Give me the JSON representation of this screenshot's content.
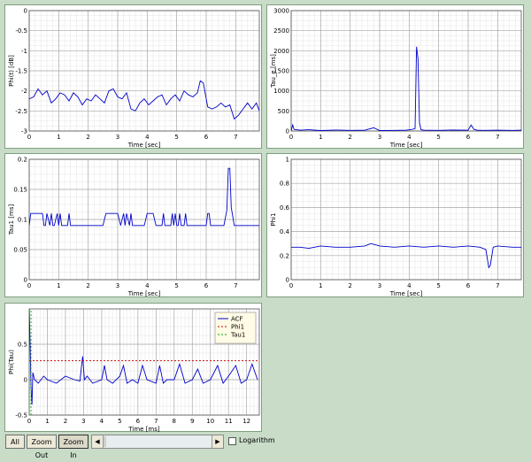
{
  "chart_data": [
    {
      "type": "line",
      "xlabel": "Time [sec]",
      "ylabel": "Phi(t) [dB]",
      "xlim": [
        0,
        7.8
      ],
      "ylim": [
        -3,
        0
      ],
      "xticks": [
        0,
        1,
        2,
        3,
        4,
        5,
        6,
        7
      ],
      "yticks": [
        0,
        -0.5,
        -1,
        -1.5,
        -2,
        -2.5,
        -3
      ],
      "grid": true,
      "series": [
        {
          "color": "#0000cc",
          "x": [
            0,
            0.15,
            0.3,
            0.45,
            0.6,
            0.75,
            0.9,
            1.05,
            1.2,
            1.35,
            1.5,
            1.65,
            1.8,
            1.95,
            2.1,
            2.25,
            2.4,
            2.55,
            2.7,
            2.85,
            3.0,
            3.15,
            3.3,
            3.45,
            3.6,
            3.75,
            3.9,
            4.05,
            4.2,
            4.35,
            4.5,
            4.65,
            4.8,
            4.95,
            5.1,
            5.25,
            5.4,
            5.55,
            5.7,
            5.8,
            5.9,
            6.05,
            6.2,
            6.35,
            6.5,
            6.65,
            6.8,
            6.95,
            7.1,
            7.25,
            7.4,
            7.55,
            7.7,
            7.8
          ],
          "y": [
            -2.2,
            -2.15,
            -1.95,
            -2.1,
            -2.0,
            -2.3,
            -2.2,
            -2.05,
            -2.1,
            -2.25,
            -2.05,
            -2.15,
            -2.35,
            -2.2,
            -2.25,
            -2.1,
            -2.2,
            -2.3,
            -2.0,
            -1.95,
            -2.15,
            -2.2,
            -2.05,
            -2.45,
            -2.5,
            -2.3,
            -2.2,
            -2.35,
            -2.25,
            -2.15,
            -2.1,
            -2.35,
            -2.2,
            -2.1,
            -2.25,
            -2.0,
            -2.1,
            -2.15,
            -2.05,
            -1.75,
            -1.8,
            -2.4,
            -2.45,
            -2.4,
            -2.3,
            -2.4,
            -2.35,
            -2.7,
            -2.6,
            -2.45,
            -2.3,
            -2.45,
            -2.3,
            -2.5
          ]
        }
      ]
    },
    {
      "type": "line",
      "xlabel": "Time [sec]",
      "ylabel": "Tau_e [ms]",
      "xlim": [
        0,
        7.8
      ],
      "ylim": [
        0,
        3000
      ],
      "xticks": [
        0,
        1,
        2,
        3,
        4,
        5,
        6,
        7
      ],
      "yticks": [
        0,
        500,
        1000,
        1500,
        2000,
        2500,
        3000
      ],
      "grid": true,
      "series": [
        {
          "color": "#0000cc",
          "x": [
            0,
            0.05,
            0.1,
            0.3,
            0.6,
            1.0,
            1.5,
            2.0,
            2.5,
            2.8,
            3.0,
            3.5,
            3.9,
            4.1,
            4.2,
            4.25,
            4.3,
            4.35,
            4.4,
            4.5,
            5.0,
            5.5,
            6.0,
            6.1,
            6.2,
            6.3,
            6.5,
            7.0,
            7.5,
            7.8
          ],
          "y": [
            0,
            150,
            40,
            20,
            30,
            10,
            25,
            15,
            20,
            80,
            10,
            15,
            20,
            40,
            60,
            2100,
            1800,
            200,
            30,
            20,
            15,
            25,
            20,
            150,
            40,
            20,
            15,
            20,
            15,
            20
          ]
        }
      ]
    },
    {
      "type": "line",
      "xlabel": "Time [sec]",
      "ylabel": "Tau1 [ms]",
      "xlim": [
        0,
        7.8
      ],
      "ylim": [
        0,
        0.2
      ],
      "xticks": [
        0,
        1,
        2,
        3,
        4,
        5,
        6,
        7
      ],
      "yticks": [
        0,
        0.05,
        0.1,
        0.15,
        0.2
      ],
      "grid": true,
      "series": [
        {
          "color": "#0000cc",
          "x": [
            0,
            0.05,
            0.1,
            0.45,
            0.5,
            0.55,
            0.6,
            0.7,
            0.75,
            0.8,
            0.85,
            0.95,
            1.0,
            1.05,
            1.1,
            1.3,
            1.35,
            1.4,
            1.45,
            2.5,
            2.6,
            3.0,
            3.1,
            3.2,
            3.25,
            3.3,
            3.4,
            3.45,
            3.5,
            3.9,
            4.0,
            4.2,
            4.3,
            4.5,
            4.55,
            4.6,
            4.65,
            4.8,
            4.85,
            4.9,
            4.95,
            5.0,
            5.05,
            5.1,
            5.15,
            5.25,
            5.3,
            5.35,
            5.4,
            6.0,
            6.05,
            6.1,
            6.15,
            6.6,
            6.7,
            6.75,
            6.8,
            6.85,
            6.95,
            7.8
          ],
          "y": [
            0.09,
            0.11,
            0.11,
            0.11,
            0.09,
            0.09,
            0.11,
            0.09,
            0.11,
            0.09,
            0.09,
            0.11,
            0.09,
            0.11,
            0.09,
            0.09,
            0.11,
            0.09,
            0.09,
            0.09,
            0.11,
            0.11,
            0.09,
            0.11,
            0.09,
            0.11,
            0.09,
            0.11,
            0.09,
            0.09,
            0.11,
            0.11,
            0.09,
            0.09,
            0.11,
            0.09,
            0.09,
            0.09,
            0.11,
            0.09,
            0.11,
            0.09,
            0.09,
            0.11,
            0.09,
            0.09,
            0.11,
            0.09,
            0.09,
            0.09,
            0.11,
            0.11,
            0.09,
            0.09,
            0.115,
            0.185,
            0.185,
            0.12,
            0.09,
            0.09
          ]
        }
      ]
    },
    {
      "type": "line",
      "xlabel": "Time [sec]",
      "ylabel": "Phi1",
      "xlim": [
        0,
        7.8
      ],
      "ylim": [
        0,
        1
      ],
      "xticks": [
        0,
        1,
        2,
        3,
        4,
        5,
        6,
        7
      ],
      "yticks": [
        0,
        0.2,
        0.4,
        0.6,
        0.8,
        1
      ],
      "grid": true,
      "series": [
        {
          "color": "#0000cc",
          "x": [
            0,
            0.3,
            0.6,
            1.0,
            1.5,
            2.0,
            2.5,
            2.7,
            3.0,
            3.5,
            4.0,
            4.5,
            5.0,
            5.5,
            6.0,
            6.4,
            6.6,
            6.7,
            6.75,
            6.85,
            7.0,
            7.5,
            7.8
          ],
          "y": [
            0.27,
            0.27,
            0.26,
            0.28,
            0.27,
            0.27,
            0.28,
            0.3,
            0.28,
            0.27,
            0.28,
            0.27,
            0.28,
            0.27,
            0.28,
            0.27,
            0.25,
            0.1,
            0.12,
            0.27,
            0.28,
            0.27,
            0.27
          ]
        }
      ]
    },
    {
      "type": "line",
      "xlabel": "Time [ms]",
      "ylabel": "Phi(Tau)",
      "xlim": [
        0,
        12.7
      ],
      "ylim": [
        -0.5,
        1.0
      ],
      "xticks": [
        0,
        1,
        2,
        3,
        4,
        5,
        6,
        7,
        8,
        9,
        10,
        11,
        12
      ],
      "yticks": [
        -0.5,
        0,
        0.5
      ],
      "ytick_labels": [
        "-0.5",
        "0",
        "0.5"
      ],
      "grid": true,
      "legend_position": "top-right",
      "series": [
        {
          "name": "ACF",
          "color": "#0000cc",
          "x": [
            0,
            0.05,
            0.1,
            0.15,
            0.2,
            0.3,
            0.5,
            0.8,
            1.0,
            1.5,
            2.0,
            2.5,
            2.8,
            2.95,
            3.05,
            3.2,
            3.5,
            4.0,
            4.15,
            4.3,
            4.6,
            5.0,
            5.2,
            5.4,
            5.7,
            6.0,
            6.25,
            6.5,
            7.0,
            7.2,
            7.4,
            7.6,
            8.0,
            8.3,
            8.6,
            9.0,
            9.3,
            9.6,
            10.0,
            10.4,
            10.7,
            11.0,
            11.4,
            11.7,
            12.0,
            12.3,
            12.6
          ],
          "y": [
            1.0,
            0.5,
            -0.1,
            -0.35,
            0.1,
            0.0,
            -0.05,
            0.05,
            0.0,
            -0.05,
            0.05,
            0.0,
            -0.02,
            0.33,
            0.0,
            0.05,
            -0.05,
            0.0,
            0.2,
            0.0,
            -0.05,
            0.05,
            0.2,
            -0.05,
            0.0,
            -0.05,
            0.2,
            0.0,
            -0.05,
            0.2,
            -0.05,
            0.0,
            0.0,
            0.22,
            -0.05,
            0.0,
            0.15,
            -0.05,
            0.0,
            0.2,
            -0.05,
            0.05,
            0.2,
            -0.05,
            0.0,
            0.22,
            0.0
          ]
        },
        {
          "name": "Phi1",
          "color": "#cc0000",
          "dashed": true,
          "x": [
            0,
            12.7
          ],
          "y": [
            0.27,
            0.27
          ]
        },
        {
          "name": "Tau1",
          "color": "#00aa00",
          "dashed": true,
          "vertical_x": 0.1,
          "x": [
            0.1,
            0.1
          ],
          "y": [
            -0.5,
            1.0
          ]
        }
      ]
    }
  ],
  "toolbar": {
    "all_label": "All",
    "zoom_out_label": "Zoom Out",
    "zoom_in_label": "Zoom In",
    "left_arrow": "◀",
    "right_arrow": "▶",
    "log_label": "Logarithm"
  }
}
